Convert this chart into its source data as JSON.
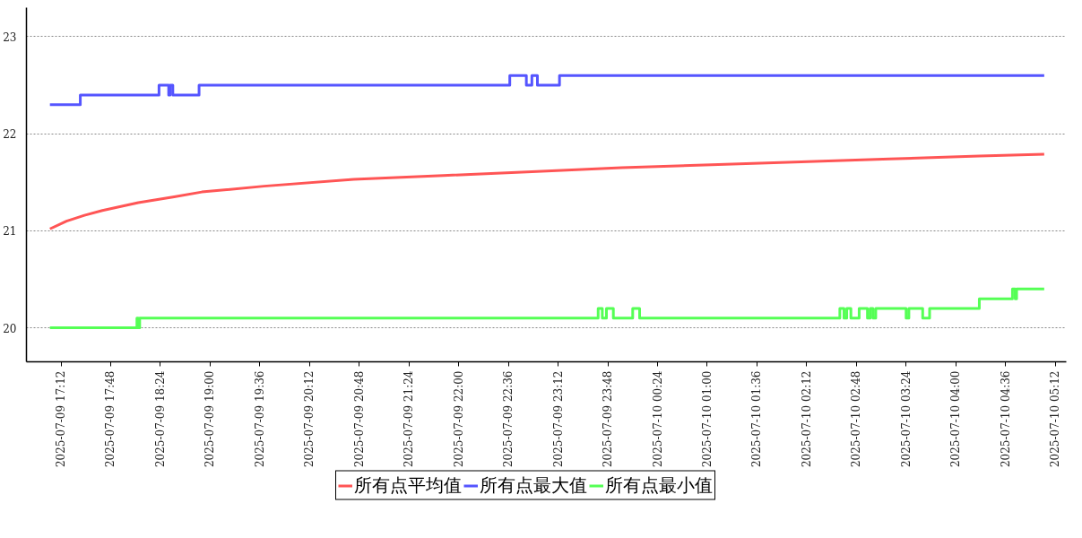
{
  "chart_data": {
    "type": "step",
    "xlim": [
      "2025-07-09T16:47",
      "2025-07-10T05:20"
    ],
    "ylim": [
      19.65,
      23.3
    ],
    "yticks": [
      20,
      21,
      22,
      23
    ],
    "xticks": [
      {
        "value": "2025-07-09T17:12",
        "label": "2025-07-09 17:12"
      },
      {
        "value": "2025-07-09T17:48",
        "label": "2025-07-09 17:48"
      },
      {
        "value": "2025-07-09T18:24",
        "label": "2025-07-09 18:24"
      },
      {
        "value": "2025-07-09T19:00",
        "label": "2025-07-09 19:00"
      },
      {
        "value": "2025-07-09T19:36",
        "label": "2025-07-09 19:36"
      },
      {
        "value": "2025-07-09T20:12",
        "label": "2025-07-09 20:12"
      },
      {
        "value": "2025-07-09T20:48",
        "label": "2025-07-09 20:48"
      },
      {
        "value": "2025-07-09T21:24",
        "label": "2025-07-09 21:24"
      },
      {
        "value": "2025-07-09T22:00",
        "label": "2025-07-09 22:00"
      },
      {
        "value": "2025-07-09T22:36",
        "label": "2025-07-09 22:36"
      },
      {
        "value": "2025-07-09T23:12",
        "label": "2025-07-09 23:12"
      },
      {
        "value": "2025-07-09T23:48",
        "label": "2025-07-09 23:48"
      },
      {
        "value": "2025-07-10T00:24",
        "label": "2025-07-10 00:24"
      },
      {
        "value": "2025-07-10T01:00",
        "label": "2025-07-10 01:00"
      },
      {
        "value": "2025-07-10T01:36",
        "label": "2025-07-10 01:36"
      },
      {
        "value": "2025-07-10T02:12",
        "label": "2025-07-10 02:12"
      },
      {
        "value": "2025-07-10T02:48",
        "label": "2025-07-10 02:48"
      },
      {
        "value": "2025-07-10T03:24",
        "label": "2025-07-10 03:24"
      },
      {
        "value": "2025-07-10T04:00",
        "label": "2025-07-10 04:00"
      },
      {
        "value": "2025-07-10T04:36",
        "label": "2025-07-10 04:36"
      },
      {
        "value": "2025-07-10T05:12",
        "label": "2025-07-10 05:12"
      }
    ],
    "grid": "y",
    "legend": "bottom",
    "series": [
      {
        "name": "所有点平均值",
        "color": "#ff5555",
        "type": "line",
        "x": [
          "2025-07-09T17:04",
          "2025-07-09T17:16",
          "2025-07-09T17:29",
          "2025-07-09T17:42",
          "2025-07-09T18:08",
          "2025-07-09T18:34",
          "2025-07-09T18:54",
          "2025-07-09T19:39",
          "2025-07-09T20:44",
          "2025-07-09T21:49",
          "2025-07-09T22:53",
          "2025-07-09T23:58",
          "2025-07-10T01:03",
          "2025-07-10T02:08",
          "2025-07-10T03:12",
          "2025-07-10T04:17",
          "2025-07-10T05:04"
        ],
        "values": [
          21.02,
          21.1,
          21.16,
          21.21,
          21.29,
          21.35,
          21.4,
          21.46,
          21.53,
          21.57,
          21.61,
          21.65,
          21.68,
          21.71,
          21.74,
          21.77,
          21.79
        ]
      },
      {
        "name": "所有点最大值",
        "color": "#5555ff",
        "x": [
          "2025-07-09T17:04",
          "2025-07-09T17:26",
          "2025-07-09T18:23",
          "2025-07-09T18:30",
          "2025-07-09T18:31",
          "2025-07-09T18:33",
          "2025-07-09T18:52",
          "2025-07-09T22:37",
          "2025-07-09T22:49",
          "2025-07-09T22:53",
          "2025-07-09T22:57",
          "2025-07-09T23:13",
          "2025-07-10T05:04"
        ],
        "values": [
          22.3,
          22.4,
          22.5,
          22.4,
          22.5,
          22.4,
          22.5,
          22.6,
          22.5,
          22.6,
          22.5,
          22.6,
          22.6
        ]
      },
      {
        "name": "所有点最小值",
        "color": "#55ff55",
        "x": [
          "2025-07-09T17:04",
          "2025-07-09T18:07",
          "2025-07-09T18:08",
          "2025-07-09T18:09",
          "2025-07-09T23:41",
          "2025-07-09T23:44",
          "2025-07-09T23:47",
          "2025-07-09T23:52",
          "2025-07-10T00:06",
          "2025-07-10T00:11",
          "2025-07-10T02:36",
          "2025-07-10T02:39",
          "2025-07-10T02:41",
          "2025-07-10T02:44",
          "2025-07-10T02:50",
          "2025-07-10T02:56",
          "2025-07-10T02:58",
          "2025-07-10T03:00",
          "2025-07-10T03:02",
          "2025-07-10T03:24",
          "2025-07-10T03:26",
          "2025-07-10T03:36",
          "2025-07-10T03:41",
          "2025-07-10T04:17",
          "2025-07-10T04:41",
          "2025-07-10T04:43",
          "2025-07-10T04:44",
          "2025-07-10T05:04"
        ],
        "values": [
          20.0,
          20.1,
          20.0,
          20.1,
          20.2,
          20.1,
          20.2,
          20.1,
          20.2,
          20.1,
          20.2,
          20.1,
          20.2,
          20.1,
          20.2,
          20.1,
          20.2,
          20.1,
          20.2,
          20.1,
          20.2,
          20.1,
          20.2,
          20.3,
          20.4,
          20.3,
          20.4,
          20.4
        ]
      }
    ]
  }
}
